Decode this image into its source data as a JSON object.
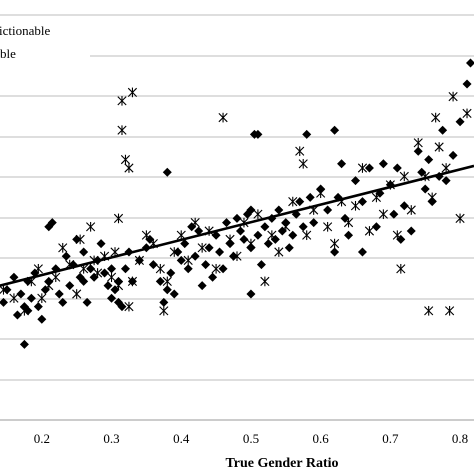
{
  "chart_data": {
    "type": "scatter",
    "title": "",
    "xlabel": "True Gender Ratio",
    "ylabel": "",
    "xlim": [
      0.14,
      0.82
    ],
    "ylim": [
      0,
      1
    ],
    "x_ticks": [
      "0.2",
      "0.3",
      "0.4",
      "0.5",
      "0.6",
      "0.7",
      "0.8"
    ],
    "grid": true,
    "legend_position": "top-left",
    "legend": [
      {
        "label": "ictionable",
        "marker": "asterisk"
      },
      {
        "label": "ble",
        "marker": "diamond"
      }
    ],
    "series": [
      {
        "label_key": 1,
        "marker": "diamond",
        "color": "#000000",
        "points": [
          [
            0.145,
            0.28
          ],
          [
            0.15,
            0.31
          ],
          [
            0.16,
            0.34
          ],
          [
            0.165,
            0.25
          ],
          [
            0.17,
            0.3
          ],
          [
            0.175,
            0.27
          ],
          [
            0.18,
            0.33
          ],
          [
            0.18,
            0.26
          ],
          [
            0.175,
            0.18
          ],
          [
            0.185,
            0.29
          ],
          [
            0.19,
            0.35
          ],
          [
            0.195,
            0.27
          ],
          [
            0.2,
            0.24
          ],
          [
            0.205,
            0.31
          ],
          [
            0.21,
            0.33
          ],
          [
            0.21,
            0.46
          ],
          [
            0.215,
            0.47
          ],
          [
            0.22,
            0.36
          ],
          [
            0.225,
            0.3
          ],
          [
            0.23,
            0.28
          ],
          [
            0.235,
            0.39
          ],
          [
            0.24,
            0.32
          ],
          [
            0.245,
            0.37
          ],
          [
            0.25,
            0.43
          ],
          [
            0.255,
            0.34
          ],
          [
            0.26,
            0.33
          ],
          [
            0.26,
            0.4
          ],
          [
            0.265,
            0.28
          ],
          [
            0.27,
            0.36
          ],
          [
            0.275,
            0.34
          ],
          [
            0.28,
            0.38
          ],
          [
            0.285,
            0.42
          ],
          [
            0.29,
            0.35
          ],
          [
            0.295,
            0.32
          ],
          [
            0.3,
            0.29
          ],
          [
            0.3,
            0.36
          ],
          [
            0.305,
            0.31
          ],
          [
            0.31,
            0.28
          ],
          [
            0.31,
            0.33
          ],
          [
            0.315,
            0.27
          ],
          [
            0.32,
            0.36
          ],
          [
            0.325,
            0.4
          ],
          [
            0.33,
            0.33
          ],
          [
            0.34,
            0.38
          ],
          [
            0.35,
            0.41
          ],
          [
            0.355,
            0.43
          ],
          [
            0.36,
            0.37
          ],
          [
            0.37,
            0.33
          ],
          [
            0.375,
            0.28
          ],
          [
            0.38,
            0.31
          ],
          [
            0.38,
            0.59
          ],
          [
            0.385,
            0.35
          ],
          [
            0.39,
            0.3
          ],
          [
            0.395,
            0.4
          ],
          [
            0.4,
            0.38
          ],
          [
            0.405,
            0.42
          ],
          [
            0.41,
            0.36
          ],
          [
            0.415,
            0.46
          ],
          [
            0.42,
            0.39
          ],
          [
            0.425,
            0.45
          ],
          [
            0.43,
            0.32
          ],
          [
            0.435,
            0.37
          ],
          [
            0.44,
            0.41
          ],
          [
            0.445,
            0.34
          ],
          [
            0.45,
            0.44
          ],
          [
            0.455,
            0.4
          ],
          [
            0.46,
            0.36
          ],
          [
            0.465,
            0.47
          ],
          [
            0.47,
            0.42
          ],
          [
            0.475,
            0.39
          ],
          [
            0.48,
            0.48
          ],
          [
            0.485,
            0.45
          ],
          [
            0.49,
            0.43
          ],
          [
            0.495,
            0.49
          ],
          [
            0.5,
            0.5
          ],
          [
            0.5,
            0.41
          ],
          [
            0.505,
            0.68
          ],
          [
            0.51,
            0.68
          ],
          [
            0.51,
            0.44
          ],
          [
            0.515,
            0.37
          ],
          [
            0.52,
            0.46
          ],
          [
            0.525,
            0.42
          ],
          [
            0.53,
            0.48
          ],
          [
            0.535,
            0.43
          ],
          [
            0.54,
            0.5
          ],
          [
            0.545,
            0.45
          ],
          [
            0.55,
            0.47
          ],
          [
            0.555,
            0.41
          ],
          [
            0.56,
            0.44
          ],
          [
            0.565,
            0.49
          ],
          [
            0.57,
            0.52
          ],
          [
            0.575,
            0.46
          ],
          [
            0.58,
            0.68
          ],
          [
            0.585,
            0.53
          ],
          [
            0.59,
            0.47
          ],
          [
            0.6,
            0.55
          ],
          [
            0.61,
            0.5
          ],
          [
            0.62,
            0.69
          ],
          [
            0.625,
            0.53
          ],
          [
            0.63,
            0.61
          ],
          [
            0.635,
            0.48
          ],
          [
            0.64,
            0.44
          ],
          [
            0.65,
            0.57
          ],
          [
            0.66,
            0.52
          ],
          [
            0.67,
            0.6
          ],
          [
            0.68,
            0.46
          ],
          [
            0.685,
            0.54
          ],
          [
            0.69,
            0.61
          ],
          [
            0.7,
            0.56
          ],
          [
            0.705,
            0.49
          ],
          [
            0.71,
            0.6
          ],
          [
            0.715,
            0.43
          ],
          [
            0.72,
            0.51
          ],
          [
            0.73,
            0.45
          ],
          [
            0.74,
            0.64
          ],
          [
            0.745,
            0.59
          ],
          [
            0.75,
            0.55
          ],
          [
            0.755,
            0.62
          ],
          [
            0.76,
            0.52
          ],
          [
            0.77,
            0.58
          ],
          [
            0.775,
            0.69
          ],
          [
            0.78,
            0.57
          ],
          [
            0.79,
            0.63
          ],
          [
            0.8,
            0.71
          ],
          [
            0.81,
            0.8
          ],
          [
            0.815,
            0.85
          ],
          [
            0.5,
            0.3
          ],
          [
            0.62,
            0.4
          ],
          [
            0.66,
            0.4
          ]
        ]
      },
      {
        "label_key": 0,
        "marker": "asterisk",
        "color": "#000000",
        "points": [
          [
            0.145,
            0.31
          ],
          [
            0.16,
            0.29
          ],
          [
            0.175,
            0.26
          ],
          [
            0.185,
            0.33
          ],
          [
            0.195,
            0.36
          ],
          [
            0.2,
            0.29
          ],
          [
            0.21,
            0.32
          ],
          [
            0.22,
            0.34
          ],
          [
            0.23,
            0.41
          ],
          [
            0.24,
            0.37
          ],
          [
            0.25,
            0.3
          ],
          [
            0.255,
            0.43
          ],
          [
            0.26,
            0.36
          ],
          [
            0.27,
            0.46
          ],
          [
            0.275,
            0.38
          ],
          [
            0.28,
            0.35
          ],
          [
            0.29,
            0.39
          ],
          [
            0.3,
            0.34
          ],
          [
            0.305,
            0.4
          ],
          [
            0.31,
            0.48
          ],
          [
            0.31,
            0.32
          ],
          [
            0.315,
            0.76
          ],
          [
            0.315,
            0.69
          ],
          [
            0.32,
            0.62
          ],
          [
            0.325,
            0.6
          ],
          [
            0.33,
            0.78
          ],
          [
            0.34,
            0.38
          ],
          [
            0.35,
            0.44
          ],
          [
            0.36,
            0.42
          ],
          [
            0.37,
            0.36
          ],
          [
            0.375,
            0.26
          ],
          [
            0.38,
            0.33
          ],
          [
            0.39,
            0.4
          ],
          [
            0.4,
            0.44
          ],
          [
            0.41,
            0.38
          ],
          [
            0.42,
            0.47
          ],
          [
            0.43,
            0.41
          ],
          [
            0.44,
            0.45
          ],
          [
            0.45,
            0.36
          ],
          [
            0.46,
            0.72
          ],
          [
            0.47,
            0.43
          ],
          [
            0.48,
            0.39
          ],
          [
            0.49,
            0.47
          ],
          [
            0.5,
            0.42
          ],
          [
            0.51,
            0.49
          ],
          [
            0.52,
            0.33
          ],
          [
            0.53,
            0.44
          ],
          [
            0.54,
            0.4
          ],
          [
            0.55,
            0.46
          ],
          [
            0.56,
            0.52
          ],
          [
            0.57,
            0.64
          ],
          [
            0.575,
            0.61
          ],
          [
            0.58,
            0.44
          ],
          [
            0.59,
            0.5
          ],
          [
            0.6,
            0.54
          ],
          [
            0.61,
            0.46
          ],
          [
            0.62,
            0.42
          ],
          [
            0.63,
            0.52
          ],
          [
            0.64,
            0.47
          ],
          [
            0.65,
            0.51
          ],
          [
            0.66,
            0.6
          ],
          [
            0.67,
            0.45
          ],
          [
            0.68,
            0.53
          ],
          [
            0.69,
            0.49
          ],
          [
            0.7,
            0.56
          ],
          [
            0.71,
            0.44
          ],
          [
            0.715,
            0.36
          ],
          [
            0.72,
            0.58
          ],
          [
            0.73,
            0.5
          ],
          [
            0.74,
            0.66
          ],
          [
            0.75,
            0.58
          ],
          [
            0.755,
            0.26
          ],
          [
            0.76,
            0.53
          ],
          [
            0.765,
            0.72
          ],
          [
            0.77,
            0.65
          ],
          [
            0.78,
            0.6
          ],
          [
            0.785,
            0.26
          ],
          [
            0.79,
            0.77
          ],
          [
            0.8,
            0.48
          ],
          [
            0.81,
            0.73
          ],
          [
            0.33,
            0.33
          ],
          [
            0.325,
            0.27
          ]
        ]
      }
    ],
    "trendline": {
      "x": [
        0.14,
        0.82
      ],
      "y": [
        0.32,
        0.605
      ],
      "color": "#000000"
    }
  }
}
